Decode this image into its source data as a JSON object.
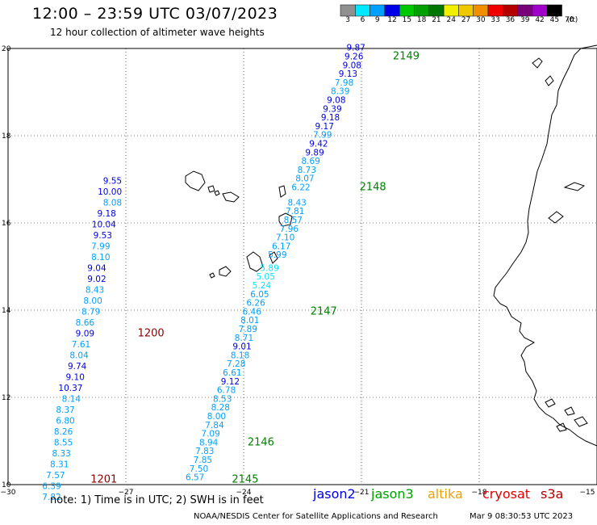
{
  "header": {
    "title": "12:00 – 23:59 UTC 03/07/2023",
    "subtitle": "12 hour collection of altimeter wave heights"
  },
  "legend": {
    "unit": "(ft)",
    "colors": [
      "#909090",
      "#00e8ff",
      "#00a0ff",
      "#0000e8",
      "#00c800",
      "#00a000",
      "#007800",
      "#f0f000",
      "#f0c800",
      "#f09000",
      "#f00000",
      "#b40000",
      "#780078",
      "#a000c8",
      "#000000"
    ],
    "labels": [
      "3",
      "6",
      "9",
      "12",
      "15",
      "18",
      "21",
      "24",
      "27",
      "30",
      "33",
      "36",
      "39",
      "42",
      "45",
      "70"
    ]
  },
  "map": {
    "lon_ticks": [
      {
        "lon": -30,
        "label": "−30"
      },
      {
        "lon": -27,
        "label": "−27"
      },
      {
        "lon": -24,
        "label": "−24"
      },
      {
        "lon": -21,
        "label": "−21"
      },
      {
        "lon": -18,
        "label": "−18"
      },
      {
        "lon": -15,
        "label": "−15"
      }
    ],
    "lat_ticks": [
      {
        "lat": 20,
        "label": "20"
      },
      {
        "lat": 18,
        "label": "18"
      },
      {
        "lat": 16,
        "label": "16"
      },
      {
        "lat": 14,
        "label": "14"
      },
      {
        "lat": 12,
        "label": "12"
      },
      {
        "lat": 10,
        "label": "10"
      }
    ],
    "lon_range": [
      -30,
      -15
    ],
    "lat_range": [
      10,
      20
    ],
    "grid": true
  },
  "chart_data": {
    "type": "scatter",
    "xlabel": "",
    "ylabel": "",
    "series": [
      {
        "values": [
          {
            "lon": -27.1,
            "lat": 16.9,
            "swh": 9.55,
            "color": "#0000e8"
          },
          {
            "lon": -27.1,
            "lat": 16.65,
            "swh": 10.0,
            "color": "#0000e8"
          },
          {
            "lon": -27.1,
            "lat": 16.4,
            "swh": 8.08,
            "color": "#00a0ff"
          },
          {
            "lon": -27.25,
            "lat": 16.15,
            "swh": 9.18,
            "color": "#0000e8"
          },
          {
            "lon": -27.25,
            "lat": 15.9,
            "swh": 10.04,
            "color": "#0000e8"
          },
          {
            "lon": -27.35,
            "lat": 15.65,
            "swh": 9.53,
            "color": "#0000e8"
          },
          {
            "lon": -27.4,
            "lat": 15.4,
            "swh": 7.99,
            "color": "#00a0ff"
          },
          {
            "lon": -27.4,
            "lat": 15.15,
            "swh": 8.1,
            "color": "#00a0ff"
          },
          {
            "lon": -27.5,
            "lat": 14.9,
            "swh": 9.04,
            "color": "#0000e8"
          },
          {
            "lon": -27.5,
            "lat": 14.65,
            "swh": 9.02,
            "color": "#0000e8"
          },
          {
            "lon": -27.55,
            "lat": 14.4,
            "swh": 8.43,
            "color": "#00a0ff"
          },
          {
            "lon": -27.6,
            "lat": 14.15,
            "swh": 8.0,
            "color": "#00a0ff"
          },
          {
            "lon": -27.65,
            "lat": 13.9,
            "swh": 8.79,
            "color": "#00a0ff"
          },
          {
            "lon": -27.8,
            "lat": 13.65,
            "swh": 8.66,
            "color": "#00a0ff"
          },
          {
            "lon": -27.8,
            "lat": 13.4,
            "swh": 9.09,
            "color": "#0000e8"
          },
          {
            "lon": -27.9,
            "lat": 13.15,
            "swh": 7.61,
            "color": "#00a0ff"
          },
          {
            "lon": -27.95,
            "lat": 12.9,
            "swh": 8.04,
            "color": "#00a0ff"
          },
          {
            "lon": -28.0,
            "lat": 12.65,
            "swh": 9.74,
            "color": "#0000e8"
          },
          {
            "lon": -28.05,
            "lat": 12.4,
            "swh": 9.1,
            "color": "#0000e8"
          },
          {
            "lon": -28.1,
            "lat": 12.15,
            "swh": 10.37,
            "color": "#0000e8"
          },
          {
            "lon": -28.15,
            "lat": 11.9,
            "swh": 8.14,
            "color": "#00a0ff"
          },
          {
            "lon": -28.3,
            "lat": 11.65,
            "swh": 8.37,
            "color": "#00a0ff"
          },
          {
            "lon": -28.3,
            "lat": 11.4,
            "swh": 6.8,
            "color": "#00a0ff"
          },
          {
            "lon": -28.35,
            "lat": 11.15,
            "swh": 8.26,
            "color": "#00a0ff"
          },
          {
            "lon": -28.35,
            "lat": 10.9,
            "swh": 8.55,
            "color": "#00a0ff"
          },
          {
            "lon": -28.4,
            "lat": 10.65,
            "swh": 8.33,
            "color": "#00a0ff"
          },
          {
            "lon": -28.45,
            "lat": 10.4,
            "swh": 8.31,
            "color": "#00a0ff"
          },
          {
            "lon": -28.55,
            "lat": 10.15,
            "swh": 7.57,
            "color": "#00a0ff"
          },
          {
            "lon": -28.65,
            "lat": 9.9,
            "swh": 6.39,
            "color": "#00a0ff"
          },
          {
            "lon": -28.65,
            "lat": 9.65,
            "swh": 7.82,
            "color": "#00a0ff"
          }
        ]
      },
      {
        "values": [
          {
            "lon": -20.9,
            "lat": 19.95,
            "swh": 9.87,
            "color": "#0000e8"
          },
          {
            "lon": -20.95,
            "lat": 19.75,
            "swh": 9.26,
            "color": "#0000e8"
          },
          {
            "lon": -21.0,
            "lat": 19.55,
            "swh": 9.08,
            "color": "#0000e8"
          },
          {
            "lon": -21.1,
            "lat": 19.35,
            "swh": 9.13,
            "color": "#0000e8"
          },
          {
            "lon": -21.2,
            "lat": 19.15,
            "swh": 7.98,
            "color": "#00a0ff"
          },
          {
            "lon": -21.3,
            "lat": 18.95,
            "swh": 8.39,
            "color": "#00a0ff"
          },
          {
            "lon": -21.4,
            "lat": 18.75,
            "swh": 9.08,
            "color": "#0000e8"
          },
          {
            "lon": -21.5,
            "lat": 18.55,
            "swh": 9.39,
            "color": "#0000e8"
          },
          {
            "lon": -21.55,
            "lat": 18.35,
            "swh": 9.18,
            "color": "#0000e8"
          },
          {
            "lon": -21.7,
            "lat": 18.15,
            "swh": 9.17,
            "color": "#0000e8"
          },
          {
            "lon": -21.75,
            "lat": 17.95,
            "swh": 7.99,
            "color": "#00a0ff"
          },
          {
            "lon": -21.85,
            "lat": 17.75,
            "swh": 9.42,
            "color": "#0000e8"
          },
          {
            "lon": -21.95,
            "lat": 17.55,
            "swh": 9.89,
            "color": "#0000e8"
          },
          {
            "lon": -22.05,
            "lat": 17.35,
            "swh": 8.69,
            "color": "#00a0ff"
          },
          {
            "lon": -22.15,
            "lat": 17.15,
            "swh": 8.73,
            "color": "#00a0ff"
          },
          {
            "lon": -22.2,
            "lat": 16.95,
            "swh": 8.07,
            "color": "#00a0ff"
          },
          {
            "lon": -22.3,
            "lat": 16.75,
            "swh": 6.22,
            "color": "#00a0ff"
          },
          {
            "lon": -22.4,
            "lat": 16.4,
            "swh": 8.43,
            "color": "#00a0ff"
          },
          {
            "lon": -22.45,
            "lat": 16.2,
            "swh": 7.81,
            "color": "#00a0ff"
          },
          {
            "lon": -22.5,
            "lat": 16.0,
            "swh": 8.57,
            "color": "#00a0ff"
          },
          {
            "lon": -22.6,
            "lat": 15.8,
            "swh": 7.96,
            "color": "#00a0ff"
          },
          {
            "lon": -22.7,
            "lat": 15.6,
            "swh": 7.1,
            "color": "#00a0ff"
          },
          {
            "lon": -22.8,
            "lat": 15.4,
            "swh": 6.17,
            "color": "#00a0ff"
          },
          {
            "lon": -22.9,
            "lat": 15.2,
            "swh": 5.99,
            "color": "#00a0ff"
          }
        ]
      },
      {
        "values": [
          {
            "lon": -23.1,
            "lat": 14.9,
            "swh": 5.89,
            "color": "#00e8ff"
          },
          {
            "lon": -23.2,
            "lat": 14.7,
            "swh": 5.05,
            "color": "#00e8ff"
          },
          {
            "lon": -23.3,
            "lat": 14.5,
            "swh": 5.24,
            "color": "#00e8ff"
          },
          {
            "lon": -23.35,
            "lat": 14.3,
            "swh": 6.05,
            "color": "#00a0ff"
          },
          {
            "lon": -23.45,
            "lat": 14.1,
            "swh": 6.26,
            "color": "#00a0ff"
          },
          {
            "lon": -23.55,
            "lat": 13.9,
            "swh": 6.46,
            "color": "#00a0ff"
          },
          {
            "lon": -23.6,
            "lat": 13.7,
            "swh": 8.01,
            "color": "#00a0ff"
          },
          {
            "lon": -23.65,
            "lat": 13.5,
            "swh": 7.89,
            "color": "#00a0ff"
          },
          {
            "lon": -23.75,
            "lat": 13.3,
            "swh": 8.71,
            "color": "#00a0ff"
          },
          {
            "lon": -23.8,
            "lat": 13.1,
            "swh": 9.01,
            "color": "#0000e8"
          },
          {
            "lon": -23.85,
            "lat": 12.9,
            "swh": 8.18,
            "color": "#00a0ff"
          },
          {
            "lon": -23.95,
            "lat": 12.7,
            "swh": 7.28,
            "color": "#00a0ff"
          },
          {
            "lon": -24.05,
            "lat": 12.5,
            "swh": 6.61,
            "color": "#00a0ff"
          },
          {
            "lon": -24.1,
            "lat": 12.3,
            "swh": 9.12,
            "color": "#0000e8"
          },
          {
            "lon": -24.2,
            "lat": 12.1,
            "swh": 6.78,
            "color": "#00a0ff"
          },
          {
            "lon": -24.3,
            "lat": 11.9,
            "swh": 8.53,
            "color": "#00a0ff"
          },
          {
            "lon": -24.35,
            "lat": 11.7,
            "swh": 8.28,
            "color": "#00a0ff"
          },
          {
            "lon": -24.45,
            "lat": 11.5,
            "swh": 8.0,
            "color": "#00a0ff"
          },
          {
            "lon": -24.5,
            "lat": 11.3,
            "swh": 7.84,
            "color": "#00a0ff"
          },
          {
            "lon": -24.6,
            "lat": 11.1,
            "swh": 7.09,
            "color": "#00a0ff"
          },
          {
            "lon": -24.65,
            "lat": 10.9,
            "swh": 8.94,
            "color": "#00a0ff"
          },
          {
            "lon": -24.75,
            "lat": 10.7,
            "swh": 7.83,
            "color": "#00a0ff"
          },
          {
            "lon": -24.8,
            "lat": 10.5,
            "swh": 7.85,
            "color": "#00a0ff"
          },
          {
            "lon": -24.9,
            "lat": 10.3,
            "swh": 7.5,
            "color": "#00a0ff"
          },
          {
            "lon": -25.0,
            "lat": 10.1,
            "swh": 6.57,
            "color": "#00a0ff"
          }
        ]
      }
    ],
    "pass_labels": [
      {
        "text": "2149",
        "lon": -20.2,
        "lat": 19.75,
        "color": "#008000"
      },
      {
        "text": "2148",
        "lon": -21.05,
        "lat": 16.75,
        "color": "#008000"
      },
      {
        "text": "2147",
        "lon": -22.3,
        "lat": 13.9,
        "color": "#008000"
      },
      {
        "text": "2146",
        "lon": -23.9,
        "lat": 10.9,
        "color": "#008000"
      },
      {
        "text": "2145",
        "lon": -24.3,
        "lat": 10.05,
        "color": "#008000"
      },
      {
        "text": "1200",
        "lon": -26.7,
        "lat": 13.4,
        "color": "#8b0000"
      },
      {
        "text": "1201",
        "lon": -27.9,
        "lat": 10.05,
        "color": "#8b0000"
      }
    ]
  },
  "footer": {
    "note": "note:  1) Time is in UTC;  2) SWH is in feet",
    "satellites": [
      {
        "name": "jason2",
        "color": "#0000e0"
      },
      {
        "name": "jason3",
        "color": "#00a000"
      },
      {
        "name": "altika",
        "color": "#f0a000"
      },
      {
        "name": "cryosat",
        "color": "#e00000"
      },
      {
        "name": "s3a",
        "color": "#b00000"
      }
    ],
    "credit": "NOAA/NESDIS Center for Satellite Applications and Research",
    "timestamp": "Mar  9 08:30:53 UTC 2023"
  }
}
